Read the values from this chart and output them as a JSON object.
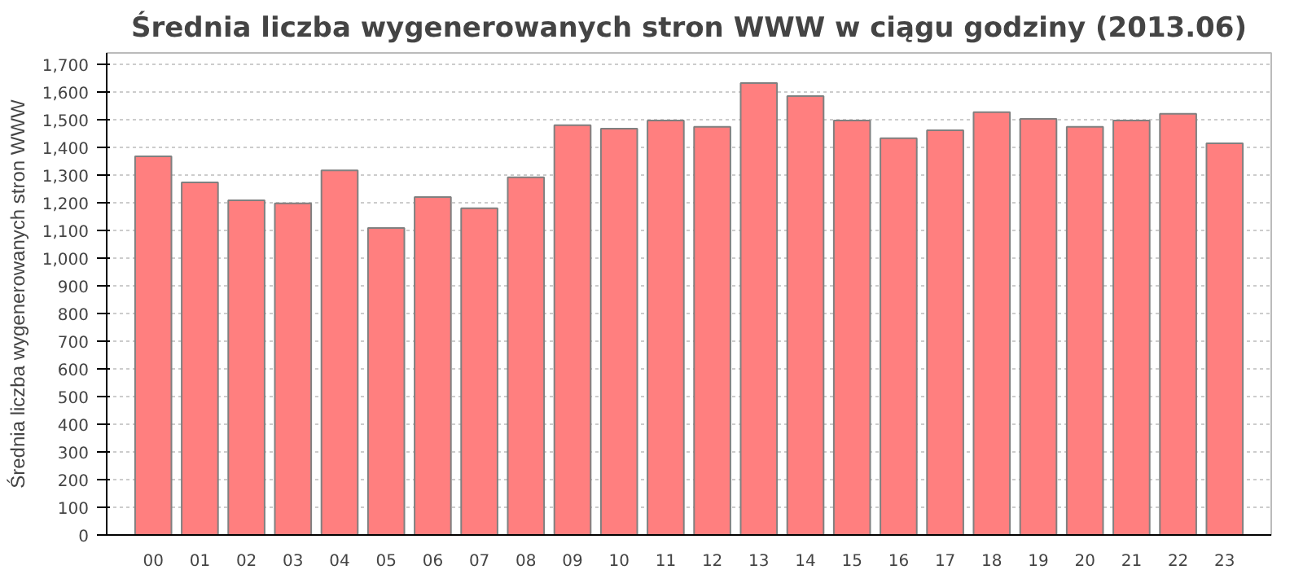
{
  "chart_data": {
    "type": "bar",
    "title": "Średnia liczba wygenerowanych stron WWW w ciągu godziny (2013.06)",
    "ylabel": "Średnia liczba wygenerowanych stron WWW",
    "categories": [
      "00",
      "01",
      "02",
      "03",
      "04",
      "05",
      "06",
      "07",
      "08",
      "09",
      "10",
      "11",
      "12",
      "13",
      "14",
      "15",
      "16",
      "17",
      "18",
      "19",
      "20",
      "21",
      "22",
      "23"
    ],
    "values": [
      1367,
      1273,
      1208,
      1197,
      1316,
      1108,
      1220,
      1179,
      1291,
      1479,
      1467,
      1496,
      1473,
      1631,
      1584,
      1496,
      1432,
      1461,
      1526,
      1502,
      1473,
      1496,
      1520,
      1414
    ],
    "color": "#ff7f7f",
    "ylim": [
      0,
      1740
    ],
    "yticks": [
      0,
      100,
      200,
      300,
      400,
      500,
      600,
      700,
      800,
      900,
      {
        "value": 1000,
        "label": "1,000"
      },
      {
        "value": 1100,
        "label": "1,100"
      },
      {
        "value": 1200,
        "label": "1,200"
      },
      {
        "value": 1300,
        "label": "1,300"
      },
      {
        "value": 1400,
        "label": "1,400"
      },
      {
        "value": 1500,
        "label": "1,500"
      },
      {
        "value": 1600,
        "label": "1,600"
      },
      {
        "value": 1700,
        "label": "1,700"
      }
    ],
    "grid": "y"
  }
}
